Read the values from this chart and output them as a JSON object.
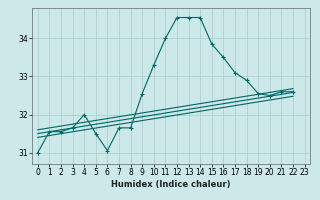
{
  "bg_color": "#cce8e8",
  "grid_color": "#aacccc",
  "line_color": "#006666",
  "xlabel": "Humidex (Indice chaleur)",
  "xlim": [
    -0.5,
    23.5
  ],
  "ylim": [
    30.7,
    34.8
  ],
  "yticks": [
    31,
    32,
    33,
    34
  ],
  "xticks": [
    0,
    1,
    2,
    3,
    4,
    5,
    6,
    7,
    8,
    9,
    10,
    11,
    12,
    13,
    14,
    15,
    16,
    17,
    18,
    19,
    20,
    21,
    22,
    23
  ],
  "xticklabels": [
    "0",
    "1",
    "2",
    "3",
    "4",
    "5",
    "6",
    "7",
    "8",
    "9",
    "10",
    "11",
    "12",
    "13",
    "14",
    "15",
    "16",
    "17",
    "18",
    "19",
    "20",
    "21",
    "22",
    "23"
  ],
  "y_main": [
    31.0,
    31.55,
    31.55,
    31.65,
    32.0,
    31.5,
    31.05,
    31.65,
    31.65,
    32.55,
    33.3,
    34.0,
    34.55,
    34.55,
    34.55,
    33.85,
    33.5,
    33.1,
    32.9,
    32.55,
    32.5,
    32.6,
    32.6
  ],
  "x_main": [
    0,
    1,
    2,
    3,
    4,
    5,
    6,
    7,
    8,
    9,
    10,
    11,
    12,
    13,
    14,
    15,
    16,
    17,
    18,
    19,
    20,
    21,
    22
  ],
  "reg_lines": [
    {
      "x": [
        0,
        22
      ],
      "y": [
        31.6,
        32.68
      ]
    },
    {
      "x": [
        0,
        22
      ],
      "y": [
        31.5,
        32.58
      ]
    },
    {
      "x": [
        0,
        22
      ],
      "y": [
        31.4,
        32.48
      ]
    }
  ]
}
